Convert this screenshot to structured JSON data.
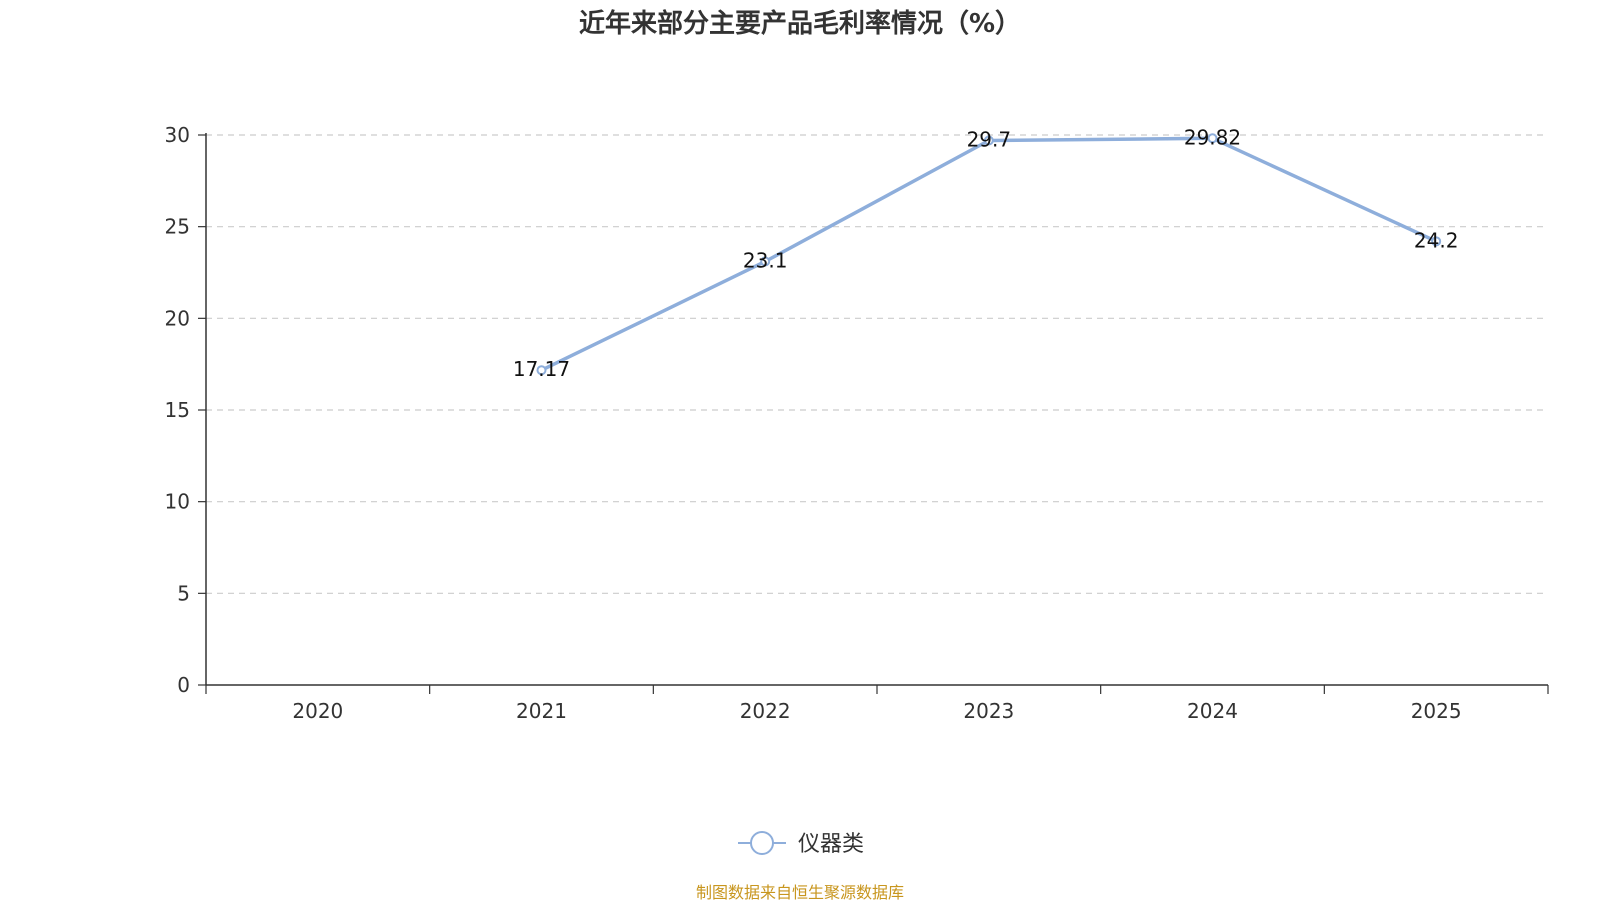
{
  "chart_data": {
    "type": "line",
    "title": "近年来部分主要产品毛利率情况（%）",
    "categories": [
      "2020",
      "2021",
      "2022",
      "2023",
      "2024",
      "2025"
    ],
    "series": [
      {
        "name": "仪器类",
        "values": [
          null,
          17.17,
          23.1,
          29.7,
          29.82,
          24.2
        ],
        "labels": [
          "",
          "17.17",
          "23.1",
          "29.7",
          "29.82",
          "24.2"
        ],
        "color": "#8eaedb"
      }
    ],
    "ylim": [
      0,
      30
    ],
    "yticks": [
      "0",
      "5",
      "10",
      "15",
      "20",
      "25",
      "30"
    ],
    "grid": true,
    "legend_position": "bottom-center",
    "xlabel": "",
    "ylabel": ""
  },
  "footer": {
    "source": "制图数据来自恒生聚源数据库",
    "source_color": "#c8961e"
  }
}
